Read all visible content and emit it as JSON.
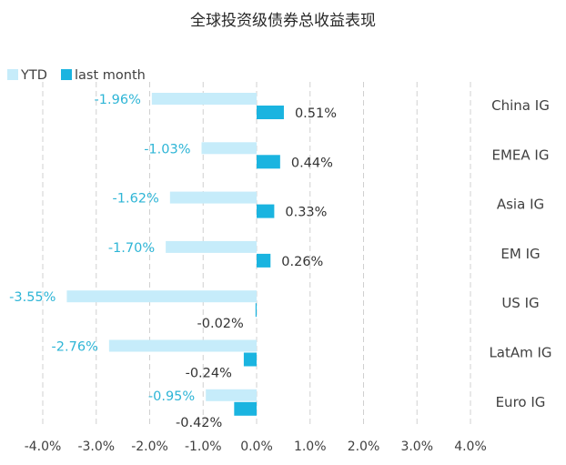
{
  "chart_data": {
    "type": "bar",
    "orientation": "horizontal",
    "title": "全球投资级债券总收益表现",
    "categories": [
      "China IG",
      "EMEA IG",
      "Asia IG",
      "EM IG",
      "US IG",
      "LatAm IG",
      "Euro IG"
    ],
    "series": [
      {
        "name": "YTD",
        "color": "#c6ecfa",
        "label_color": "#2eb5d6",
        "values": [
          -1.96,
          -1.03,
          -1.62,
          -1.7,
          -3.55,
          -2.76,
          -0.95
        ]
      },
      {
        "name": "last month",
        "color": "#1ab4e0",
        "label_color": "#333333",
        "values": [
          0.51,
          0.44,
          0.33,
          0.26,
          -0.02,
          -0.24,
          -0.42
        ]
      }
    ],
    "value_labels": [
      [
        "-1.96%",
        "-1.03%",
        "-1.62%",
        "-1.70%",
        "-3.55%",
        "-2.76%",
        "-0.95%"
      ],
      [
        "0.51%",
        "0.44%",
        "0.33%",
        "0.26%",
        "-0.02%",
        "-0.24%",
        "-0.42%"
      ]
    ],
    "xlim": [
      -4,
      4
    ],
    "x_ticks": [
      -4,
      -3,
      -2,
      -1,
      0,
      1,
      2,
      3,
      4
    ],
    "x_tick_labels": [
      "-4.0%",
      "-3.0%",
      "-2.0%",
      "-1.0%",
      "0.0%",
      "1.0%",
      "2.0%",
      "3.0%",
      "4.0%"
    ],
    "grid": "vertical dashed",
    "legend": "top-left",
    "category_label_position": "right",
    "colors": {
      "text": "#404040",
      "grid": "#d0d0d0",
      "axis": "#bfbfbf"
    }
  }
}
